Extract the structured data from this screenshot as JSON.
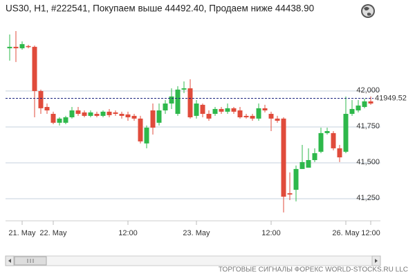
{
  "chart_data": {
    "type": "candlestick",
    "title": "US30, H1, #222541, Покупаем выше 44492.40, Продаем ниже 44438.90",
    "footer": "ТОРГОВЫЕ СИГНАЛЫ ФОРЕКС WORLD-STOCKS.RU LLC",
    "categories": [
      null,
      null,
      "21. May",
      null,
      null,
      null,
      null,
      "22. May",
      null,
      null,
      null,
      null,
      null,
      null,
      null,
      null,
      null,
      null,
      null,
      "12:00",
      null,
      null,
      null,
      null,
      null,
      null,
      null,
      null,
      null,
      null,
      "23. May",
      null,
      null,
      null,
      null,
      null,
      null,
      null,
      null,
      null,
      null,
      null,
      "12:00",
      null,
      null,
      null,
      null,
      null,
      null,
      null,
      null,
      null,
      null,
      null,
      "26. May",
      null,
      null,
      null,
      "12:00"
    ],
    "open": [
      42298,
      42308,
      42298,
      42313,
      42308,
      42000,
      41889,
      41841,
      41779,
      41779,
      41817,
      41865,
      41851,
      41827,
      41841,
      41827,
      41856,
      41851,
      41841,
      41837,
      41827,
      41808,
      41635,
      41865,
      41779,
      41865,
      41913,
      41841,
      42010,
      42019,
      41827,
      41904,
      41841,
      41841,
      41875,
      41856,
      41880,
      41865,
      41827,
      41827,
      41808,
      41880,
      41841,
      41808,
      41808,
      41288,
      41312,
      41457,
      41466,
      41519,
      41577,
      41707,
      41707,
      41601,
      41577,
      41841,
      41865,
      41889,
      41928
    ],
    "high": [
      42394,
      42418,
      42346,
      42322,
      42317,
      42010,
      41913,
      41856,
      41817,
      41827,
      41889,
      41889,
      41865,
      41865,
      41856,
      41865,
      41875,
      41865,
      41856,
      41856,
      41841,
      41827,
      41760,
      41913,
      41913,
      41937,
      42019,
      42034,
      42067,
      42082,
      41937,
      41913,
      41865,
      41889,
      41889,
      41913,
      41889,
      41889,
      41841,
      41841,
      41913,
      41904,
      41856,
      41827,
      41817,
      41433,
      41481,
      41625,
      41601,
      41601,
      41745,
      41745,
      41721,
      41625,
      41962,
      41937,
      41937,
      41947,
      41962
    ],
    "low": [
      42212,
      42202,
      42288,
      42298,
      41817,
      41841,
      41841,
      41769,
      41760,
      41769,
      41808,
      41827,
      41817,
      41817,
      41817,
      41817,
      41817,
      41827,
      41808,
      41793,
      41793,
      41635,
      41601,
      41697,
      41760,
      41841,
      41875,
      41827,
      41986,
      41808,
      41808,
      41817,
      41793,
      41827,
      41841,
      41841,
      41841,
      41808,
      41808,
      41793,
      41793,
      41851,
      41721,
      41779,
      41154,
      41240,
      41231,
      41457,
      41466,
      41505,
      41567,
      41697,
      41587,
      41505,
      41567,
      41827,
      41851,
      41880,
      41904
    ],
    "close": [
      42308,
      42298,
      42327,
      42308,
      42000,
      41880,
      41865,
      41779,
      41808,
      41817,
      41865,
      41841,
      41827,
      41851,
      41827,
      41856,
      41832,
      41841,
      41827,
      41817,
      41808,
      41649,
      41745,
      41745,
      41865,
      41913,
      41962,
      42010,
      42019,
      41817,
      41913,
      41841,
      41808,
      41875,
      41856,
      41880,
      41856,
      41817,
      41817,
      41808,
      41880,
      41865,
      41808,
      41793,
      41264,
      41279,
      41457,
      41505,
      41519,
      41567,
      41707,
      41721,
      41601,
      41538,
      41841,
      41875,
      41899,
      41928,
      41913
    ],
    "up_color": "#2eb84b",
    "down_color": "#e04b3b",
    "current_price": 41949.52,
    "current_price_color": "#1a237e",
    "ylim": [
      41096,
      42490
    ],
    "yticks": [
      {
        "value": 41250,
        "label": "41,250"
      },
      {
        "value": 41500,
        "label": "41,500"
      },
      {
        "value": 41750,
        "label": "41,750"
      },
      {
        "value": 42000,
        "label": "42,000"
      }
    ],
    "grid": true
  }
}
